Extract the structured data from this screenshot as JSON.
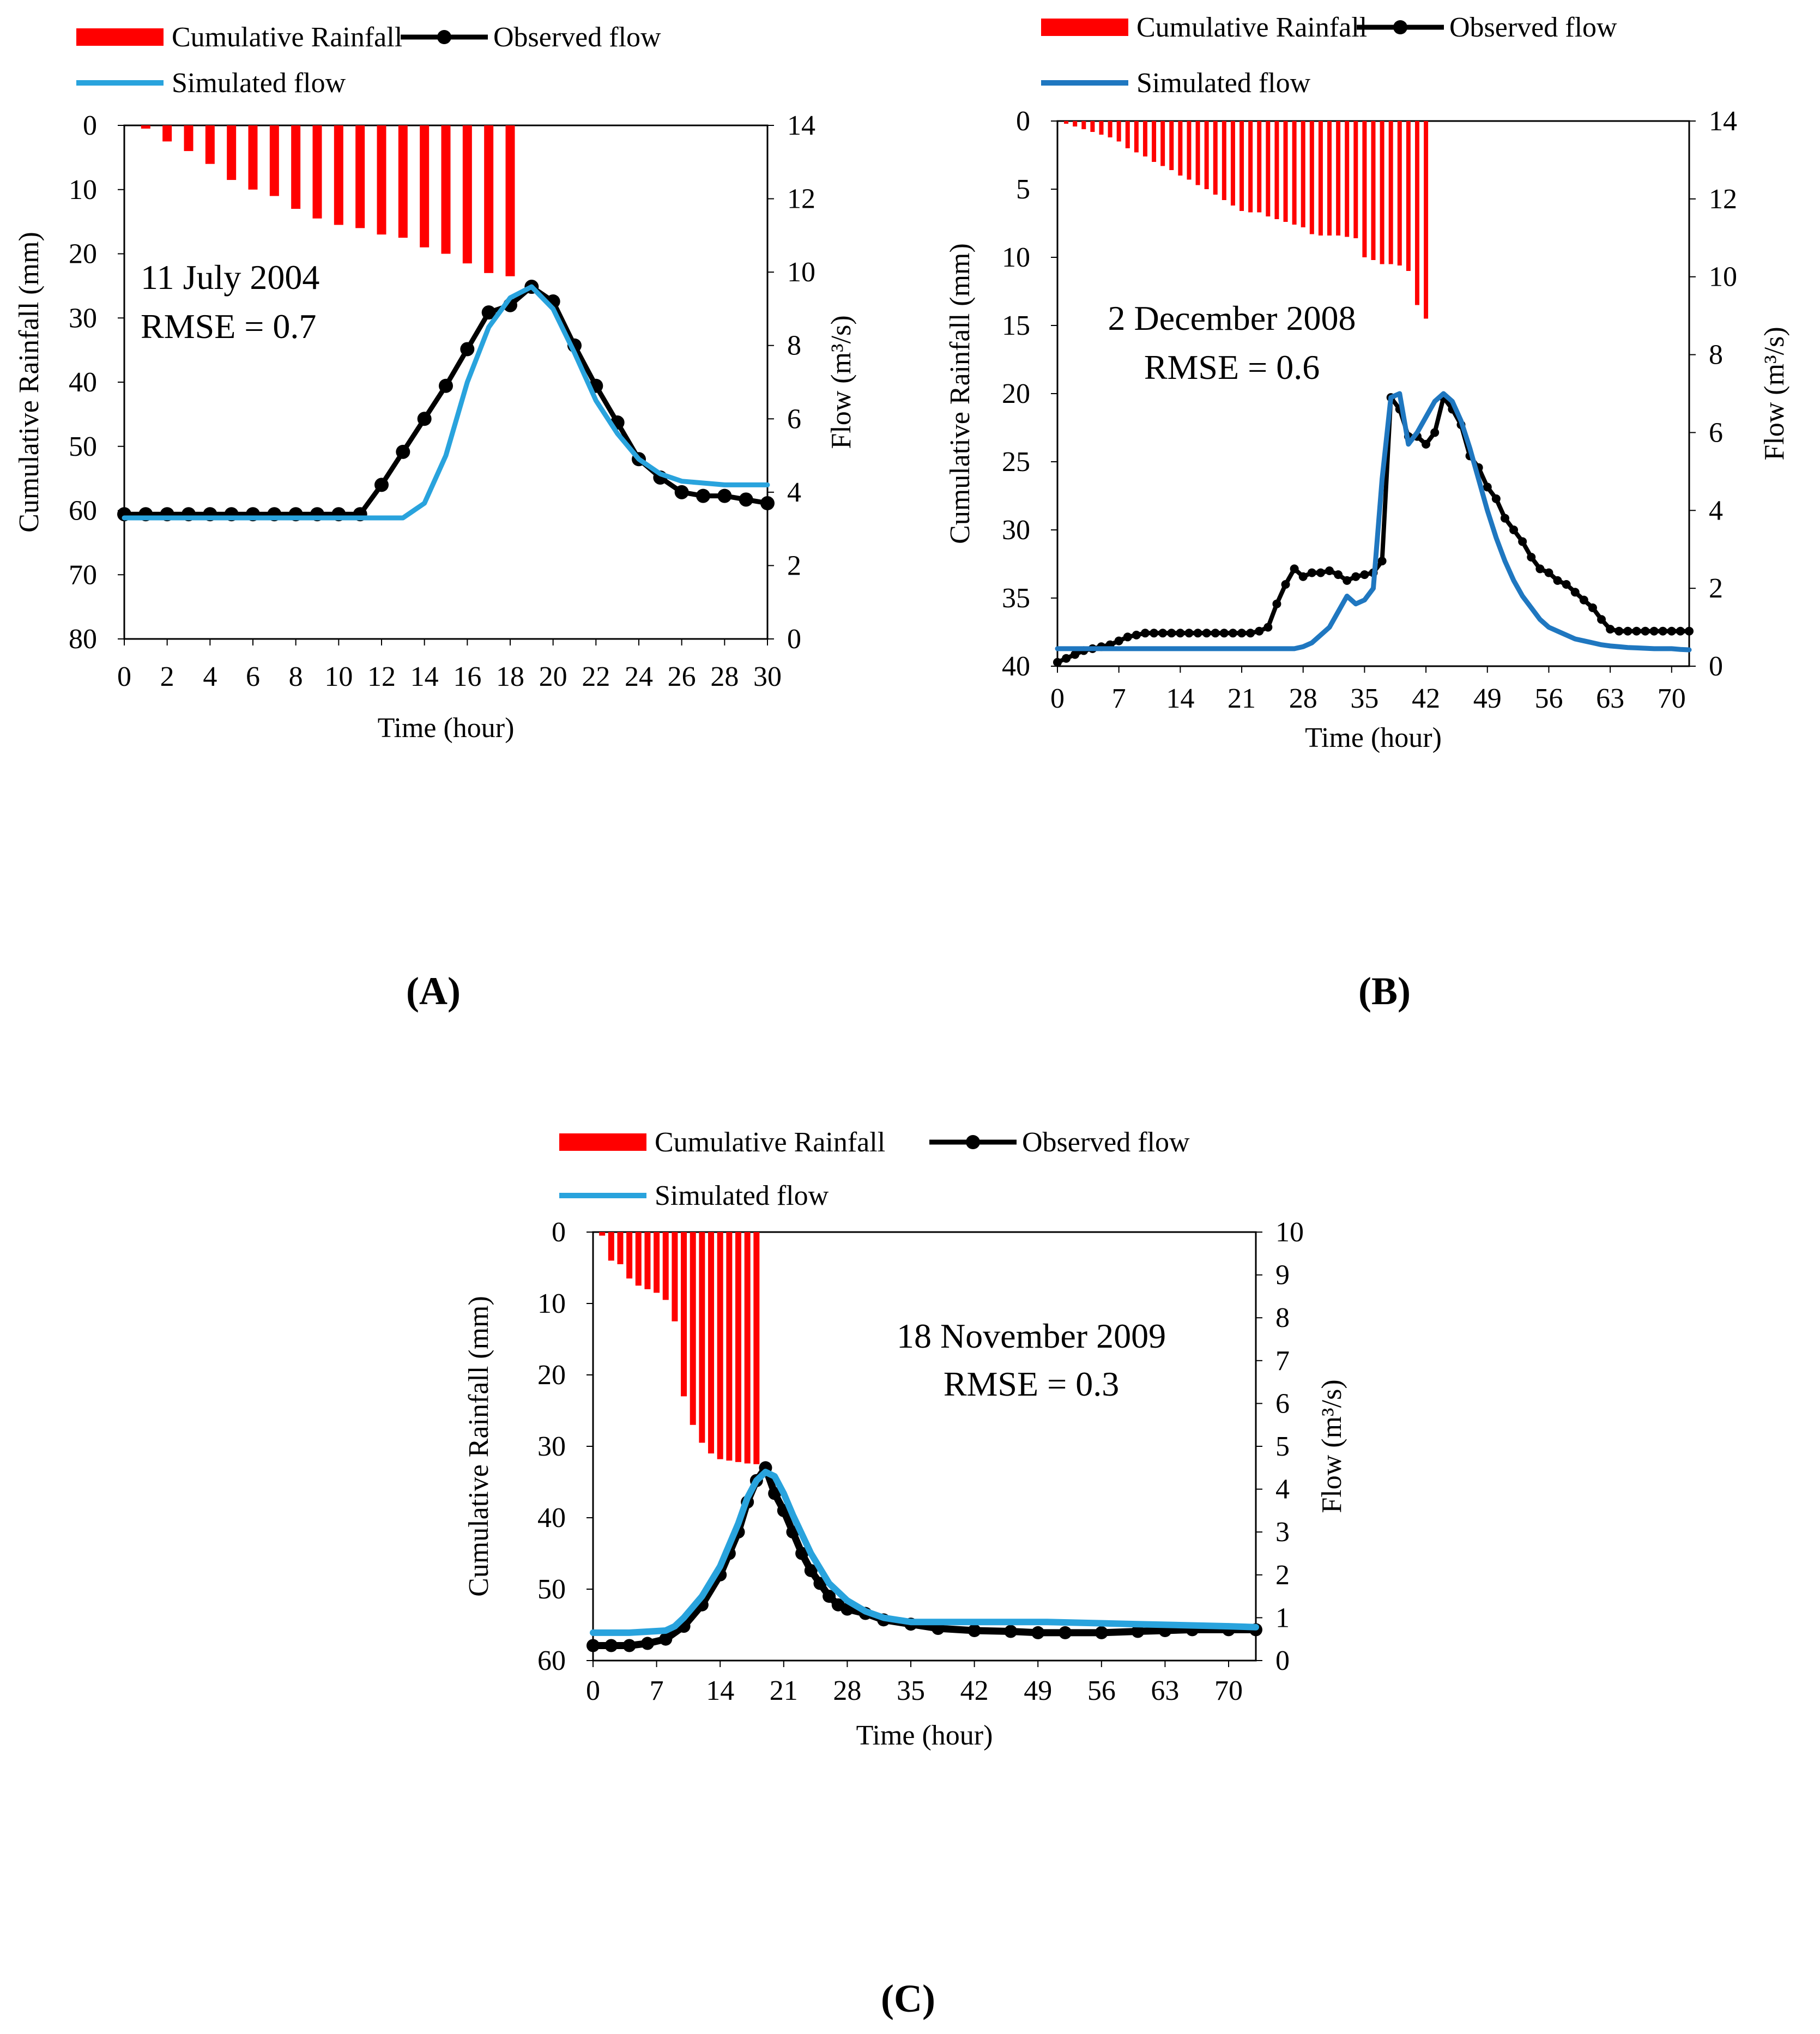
{
  "legend_labels": {
    "rainfall": "Cumulative Rainfall",
    "observed": "Observed flow",
    "simulated": "Simulated flow"
  },
  "colors": {
    "rainfall": "#ff0000",
    "observed": "#000000",
    "simulated_a": "#29a3dd",
    "simulated_b": "#1f77c0",
    "simulated_c": "#29a3dd"
  },
  "chart_data": [
    {
      "panel_label": "(A)",
      "type": "bar-line-combo",
      "annotation_event": "11 July 2004",
      "annotation_rmse": "RMSE = 0.7",
      "xlabel": "Time (hour)",
      "ylabel_left": "Cumulative Rainfall (mm)",
      "ylabel_right": "Flow (m³/s)",
      "xlim": [
        0,
        30
      ],
      "x_ticks": [
        0,
        2,
        4,
        6,
        8,
        10,
        12,
        14,
        16,
        18,
        20,
        22,
        24,
        26,
        28,
        30
      ],
      "ylim_left": [
        0,
        80
      ],
      "y_ticks_left": [
        0,
        10,
        20,
        30,
        40,
        50,
        60,
        70,
        80
      ],
      "left_axis_reversed": true,
      "ylim_right": [
        0,
        14
      ],
      "y_ticks_right": [
        0,
        2,
        4,
        6,
        8,
        10,
        12,
        14
      ],
      "legend_position": "top",
      "grid": false,
      "rainfall": {
        "name": "Cumulative Rainfall",
        "x": [
          1,
          2,
          3,
          4,
          5,
          6,
          7,
          8,
          9,
          10,
          11,
          12,
          13,
          14,
          15,
          16,
          17,
          18
        ],
        "values": [
          0.5,
          2.5,
          4,
          6,
          8.5,
          10,
          11,
          13,
          14.5,
          15.5,
          16,
          17,
          17.5,
          19,
          20,
          21.5,
          23,
          23.5
        ]
      },
      "observed": {
        "name": "Observed flow",
        "x": [
          0,
          1,
          2,
          3,
          4,
          5,
          6,
          7,
          8,
          9,
          10,
          11,
          12,
          13,
          14,
          15,
          16,
          17,
          18,
          19,
          20,
          21,
          22,
          23,
          24,
          25,
          26,
          27,
          28,
          29,
          30
        ],
        "values": [
          3.4,
          3.4,
          3.4,
          3.4,
          3.4,
          3.4,
          3.4,
          3.4,
          3.4,
          3.4,
          3.4,
          3.4,
          4.2,
          5.1,
          6,
          6.9,
          7.9,
          8.9,
          9.1,
          9.6,
          9.2,
          8,
          6.9,
          5.9,
          4.9,
          4.4,
          4,
          3.9,
          3.9,
          3.8,
          3.7
        ]
      },
      "simulated": {
        "name": "Simulated flow",
        "x": [
          0,
          1,
          2,
          3,
          4,
          5,
          6,
          7,
          8,
          9,
          10,
          11,
          12,
          13,
          14,
          15,
          16,
          17,
          18,
          19,
          20,
          21,
          22,
          23,
          24,
          25,
          26,
          27,
          28,
          29,
          30
        ],
        "values": [
          3.3,
          3.3,
          3.3,
          3.3,
          3.3,
          3.3,
          3.3,
          3.3,
          3.3,
          3.3,
          3.3,
          3.3,
          3.3,
          3.3,
          3.7,
          5,
          7,
          8.5,
          9.3,
          9.6,
          9,
          7.8,
          6.5,
          5.6,
          4.9,
          4.5,
          4.3,
          4.25,
          4.2,
          4.2,
          4.2
        ]
      }
    },
    {
      "panel_label": "(B)",
      "type": "bar-line-combo",
      "annotation_event": "2 December 2008",
      "annotation_rmse": "RMSE = 0.6",
      "xlabel": "Time (hour)",
      "ylabel_left": "Cumulative Rainfall (mm)",
      "ylabel_right": "Flow (m³/s)",
      "xlim": [
        0,
        72
      ],
      "x_ticks": [
        0,
        7,
        14,
        21,
        28,
        35,
        42,
        49,
        56,
        63,
        70
      ],
      "ylim_left": [
        0,
        40
      ],
      "y_ticks_left": [
        0,
        5,
        10,
        15,
        20,
        25,
        30,
        35,
        40
      ],
      "left_axis_reversed": true,
      "ylim_right": [
        0,
        14
      ],
      "y_ticks_right": [
        0,
        2,
        4,
        6,
        8,
        10,
        12,
        14
      ],
      "legend_position": "top",
      "grid": false,
      "rainfall": {
        "name": "Cumulative Rainfall",
        "x": [
          1,
          2,
          3,
          4,
          5,
          6,
          7,
          8,
          9,
          10,
          11,
          12,
          13,
          14,
          15,
          16,
          17,
          18,
          19,
          20,
          21,
          22,
          23,
          24,
          25,
          26,
          27,
          28,
          29,
          30,
          31,
          32,
          33,
          34,
          35,
          36,
          37,
          38,
          39,
          40,
          41,
          42
        ],
        "values": [
          0.2,
          0.4,
          0.6,
          0.8,
          1,
          1.2,
          1.5,
          2,
          2.3,
          2.6,
          3,
          3.3,
          3.6,
          4,
          4.3,
          4.7,
          5,
          5.4,
          5.8,
          6.2,
          6.6,
          6.7,
          6.7,
          7,
          7.2,
          7.4,
          7.6,
          7.8,
          8.3,
          8.4,
          8.4,
          8.4,
          8.5,
          8.6,
          10,
          10.2,
          10.5,
          10.5,
          10.6,
          11,
          13.5,
          14.5
        ]
      },
      "observed": {
        "name": "Observed flow",
        "x": [
          0,
          1,
          2,
          3,
          4,
          5,
          6,
          7,
          8,
          9,
          10,
          11,
          12,
          13,
          14,
          15,
          16,
          17,
          18,
          19,
          20,
          21,
          22,
          23,
          24,
          25,
          26,
          27,
          28,
          29,
          30,
          31,
          32,
          33,
          34,
          35,
          36,
          37,
          38,
          39,
          40,
          41,
          42,
          43,
          44,
          45,
          46,
          47,
          48,
          49,
          50,
          51,
          52,
          53,
          54,
          55,
          56,
          57,
          58,
          59,
          60,
          61,
          62,
          63,
          64,
          65,
          66,
          67,
          68,
          69,
          70,
          71,
          72
        ],
        "values": [
          0.1,
          0.2,
          0.3,
          0.4,
          0.45,
          0.5,
          0.55,
          0.65,
          0.75,
          0.8,
          0.85,
          0.85,
          0.85,
          0.85,
          0.85,
          0.85,
          0.85,
          0.85,
          0.85,
          0.85,
          0.85,
          0.85,
          0.85,
          0.9,
          1,
          1.6,
          2.1,
          2.5,
          2.3,
          2.4,
          2.4,
          2.45,
          2.35,
          2.2,
          2.3,
          2.35,
          2.4,
          2.7,
          6.9,
          6.6,
          5.9,
          5.9,
          5.7,
          6,
          6.9,
          6.6,
          6.2,
          5.4,
          5.1,
          4.6,
          4.3,
          3.8,
          3.5,
          3.2,
          2.8,
          2.5,
          2.4,
          2.2,
          2.1,
          1.9,
          1.7,
          1.5,
          1.2,
          0.95,
          0.9,
          0.9,
          0.9,
          0.9,
          0.9,
          0.9,
          0.9,
          0.9,
          0.9
        ]
      },
      "simulated": {
        "name": "Simulated flow",
        "x": [
          0,
          1,
          2,
          3,
          4,
          5,
          6,
          7,
          8,
          9,
          10,
          11,
          12,
          13,
          14,
          15,
          16,
          17,
          18,
          19,
          20,
          21,
          22,
          23,
          24,
          25,
          26,
          27,
          28,
          29,
          30,
          31,
          32,
          33,
          34,
          35,
          36,
          37,
          38,
          39,
          40,
          41,
          42,
          43,
          44,
          45,
          46,
          47,
          48,
          49,
          50,
          51,
          52,
          53,
          54,
          55,
          56,
          57,
          58,
          59,
          60,
          61,
          62,
          63,
          64,
          65,
          66,
          67,
          68,
          69,
          70,
          71,
          72
        ],
        "values": [
          0.45,
          0.45,
          0.45,
          0.45,
          0.45,
          0.45,
          0.45,
          0.45,
          0.45,
          0.45,
          0.45,
          0.45,
          0.45,
          0.45,
          0.45,
          0.45,
          0.45,
          0.45,
          0.45,
          0.45,
          0.45,
          0.45,
          0.45,
          0.45,
          0.45,
          0.45,
          0.45,
          0.45,
          0.5,
          0.6,
          0.8,
          1,
          1.4,
          1.8,
          1.6,
          1.7,
          2,
          4.8,
          6.9,
          7,
          5.7,
          6,
          6.4,
          6.8,
          7,
          6.8,
          6.3,
          5.6,
          4.8,
          4,
          3.3,
          2.7,
          2.2,
          1.8,
          1.5,
          1.2,
          1,
          0.9,
          0.8,
          0.7,
          0.65,
          0.6,
          0.55,
          0.52,
          0.5,
          0.48,
          0.47,
          0.46,
          0.45,
          0.45,
          0.45,
          0.43,
          0.42
        ]
      }
    },
    {
      "panel_label": "(C)",
      "type": "bar-line-combo",
      "annotation_event": "18 November 2009",
      "annotation_rmse": "RMSE = 0.3",
      "xlabel": "Time (hour)",
      "ylabel_left": "Cumulative Rainfall (mm)",
      "ylabel_right": "Flow (m³/s)",
      "xlim": [
        0,
        73
      ],
      "x_ticks": [
        0,
        7,
        14,
        21,
        28,
        35,
        42,
        49,
        56,
        63,
        70
      ],
      "ylim_left": [
        0,
        60
      ],
      "y_ticks_left": [
        0,
        10,
        20,
        30,
        40,
        50,
        60
      ],
      "left_axis_reversed": true,
      "ylim_right": [
        0,
        10
      ],
      "y_ticks_right": [
        0,
        1,
        2,
        3,
        4,
        5,
        6,
        7,
        8,
        9,
        10
      ],
      "legend_position": "top",
      "grid": false,
      "rainfall": {
        "name": "Cumulative Rainfall",
        "x": [
          1,
          2,
          3,
          4,
          5,
          6,
          7,
          8,
          9,
          10,
          11,
          12,
          13,
          14,
          15,
          16,
          17,
          18
        ],
        "values": [
          0.5,
          4,
          4.5,
          6.5,
          7.5,
          8,
          8.5,
          9.5,
          12.5,
          23,
          27,
          29.5,
          31,
          31.8,
          32,
          32.2,
          32.4,
          32.5
        ]
      },
      "observed": {
        "name": "Observed flow",
        "x": [
          0,
          2,
          4,
          6,
          8,
          10,
          12,
          14,
          15,
          16,
          17,
          18,
          19,
          20,
          21,
          22,
          23,
          24,
          25,
          26,
          27,
          28,
          30,
          32,
          35,
          38,
          42,
          46,
          49,
          52,
          56,
          60,
          63,
          66,
          70,
          73
        ],
        "values": [
          0.35,
          0.35,
          0.35,
          0.4,
          0.5,
          0.8,
          1.3,
          2,
          2.5,
          3,
          3.7,
          4.2,
          4.5,
          3.9,
          3.5,
          3,
          2.5,
          2.1,
          1.8,
          1.5,
          1.3,
          1.2,
          1.1,
          0.95,
          0.85,
          0.75,
          0.7,
          0.68,
          0.65,
          0.65,
          0.65,
          0.68,
          0.7,
          0.72,
          0.72,
          0.72
        ]
      },
      "simulated": {
        "name": "Simulated flow",
        "x": [
          0,
          4,
          8,
          9,
          10,
          12,
          14,
          16,
          17,
          18,
          19,
          20,
          21,
          22,
          24,
          26,
          28,
          30,
          32,
          35,
          40,
          50,
          60,
          70,
          73
        ],
        "values": [
          0.65,
          0.65,
          0.7,
          0.8,
          1,
          1.5,
          2.2,
          3.2,
          3.8,
          4.2,
          4.4,
          4.3,
          3.9,
          3.4,
          2.5,
          1.8,
          1.4,
          1.15,
          1,
          0.9,
          0.9,
          0.9,
          0.85,
          0.8,
          0.78
        ]
      }
    }
  ]
}
